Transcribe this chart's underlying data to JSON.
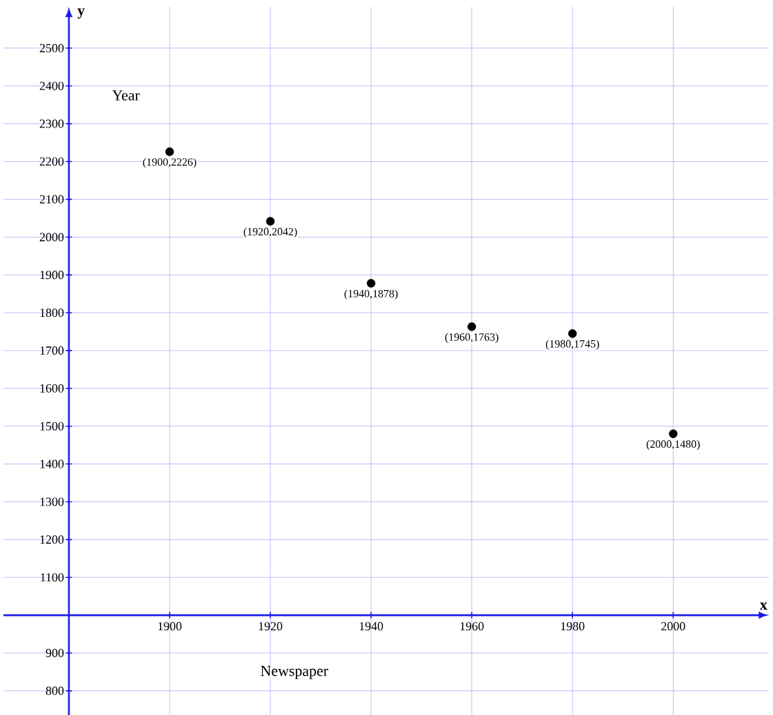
{
  "chart_data": {
    "type": "scatter",
    "xlabel": "x",
    "ylabel": "y",
    "x": [
      1900,
      1920,
      1940,
      1960,
      1980,
      2000
    ],
    "series": [
      {
        "color": "#000000",
        "values": [
          2226,
          2042,
          1878,
          1763,
          1745,
          1480
        ]
      }
    ],
    "marker": "circle",
    "xlim": [
      1867,
      2019
    ],
    "ylim": [
      736,
      2609
    ],
    "xticks": [
      1900,
      1920,
      1940,
      1960,
      1980,
      2000
    ],
    "yticks": [
      800,
      900,
      {
        "value": 1000,
        "label": null
      },
      1100,
      1200,
      1300,
      1400,
      1500,
      1600,
      1700,
      1800,
      1900,
      2000,
      2100,
      2200,
      2300,
      2400,
      2500
    ],
    "grid": true,
    "annotations": [
      "Year",
      "Newspaper",
      {
        "text": "(1900,2226)",
        "x": 1900,
        "y": 2226
      },
      {
        "text": "(1920,2042)",
        "x": 1920,
        "y": 2042
      },
      {
        "text": "(1940,1878)",
        "x": 1940,
        "y": 1878
      },
      {
        "text": "(1960,1763)",
        "x": 1960,
        "y": 1763
      },
      {
        "text": "(1980,1745)",
        "x": 1980,
        "y": 1745
      },
      {
        "text": "(2000,1480)",
        "x": 2000,
        "y": 1480
      }
    ]
  }
}
